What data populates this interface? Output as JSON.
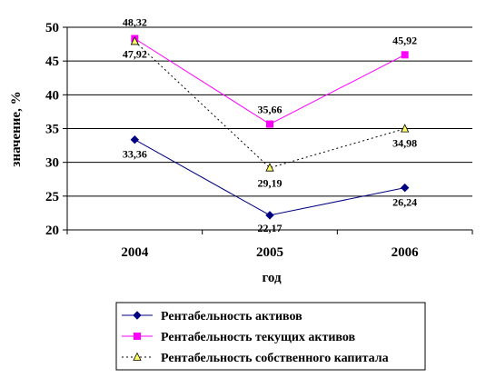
{
  "chart_data": {
    "type": "line",
    "categories": [
      "2004",
      "2005",
      "2006"
    ],
    "xlabel": "год",
    "ylabel": "значение, %",
    "ylim": [
      20,
      50
    ],
    "yticks": [
      "20",
      "25",
      "30",
      "35",
      "40",
      "45",
      "50"
    ],
    "grid": true,
    "legend_position": "bottom",
    "series": [
      {
        "name": "Рентабельность активов",
        "values": [
          33.36,
          22.17,
          26.24
        ],
        "labels": [
          "33,36",
          "22,17",
          "26,24"
        ],
        "color": "#000080",
        "marker": "diamond",
        "line": "solid"
      },
      {
        "name": "Рентабельность текущих активов",
        "values": [
          48.32,
          35.66,
          45.92
        ],
        "labels": [
          "48,32",
          "35,66",
          "45,92"
        ],
        "color": "#ff00ff",
        "marker": "square",
        "line": "solid"
      },
      {
        "name": "Рентабельность собственного капитала",
        "values": [
          47.92,
          29.19,
          34.98
        ],
        "labels": [
          "47,92",
          "29,19",
          "34,98"
        ],
        "color": "#000000",
        "marker_fill": "#ffff66",
        "marker": "triangle",
        "line": "dotted"
      }
    ]
  }
}
